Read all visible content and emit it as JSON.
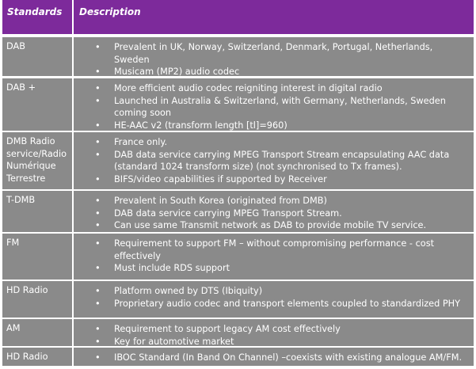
{
  "header": {
    "standards": "Standards",
    "description": "Description"
  },
  "bullet_glyph": "•",
  "colors": {
    "header_bg": "#7d2a9b",
    "cell_bg": "#8a8a8a",
    "text": "#ffffff",
    "grid": "#ffffff"
  },
  "rows": [
    {
      "standard": "DAB",
      "bullets": [
        "Prevalent in UK, Norway, Switzerland, Denmark, Portugal, Netherlands, Sweden",
        "Musicam (MP2) audio codec"
      ]
    },
    {
      "standard": "DAB +",
      "bullets": [
        "More efficient audio codec reigniting interest in digital radio",
        "Launched in Australia & Switzerland, with Germany, Netherlands, Sweden coming soon",
        "HE-AAC v2 (transform length [tl]=960)"
      ]
    },
    {
      "standard": "DMB Radio service/Radio Numérique Terrestre",
      "bullets": [
        "France only.",
        "DAB data service carrying MPEG Transport Stream encapsulating AAC data (standard 1024 transform size) (not synchronised to Tx frames).",
        "BIFS/video capabilities if supported by Receiver"
      ]
    },
    {
      "standard": "T-DMB",
      "bullets": [
        "Prevalent in South Korea (originated from DMB)",
        "DAB data service carrying MPEG Transport Stream.",
        "Can use same Transmit network as DAB to provide mobile TV service."
      ]
    },
    {
      "standard": "FM",
      "bullets": [
        "Requirement to support FM – without compromising performance - cost effectively",
        "Must include RDS support"
      ]
    },
    {
      "standard": "HD Radio",
      "bullets": [
        "Platform owned by DTS (Ibiquity)",
        "Proprietary audio codec and transport elements coupled to standardized PHY"
      ]
    },
    {
      "standard": "AM",
      "bullets": [
        "Requirement to support legacy AM cost effectively",
        "Key for automotive market"
      ]
    },
    {
      "standard": "HD Radio",
      "bullets": [
        "IBOC Standard (In Band On Channel) –coexists with existing analogue AM/FM."
      ]
    }
  ]
}
